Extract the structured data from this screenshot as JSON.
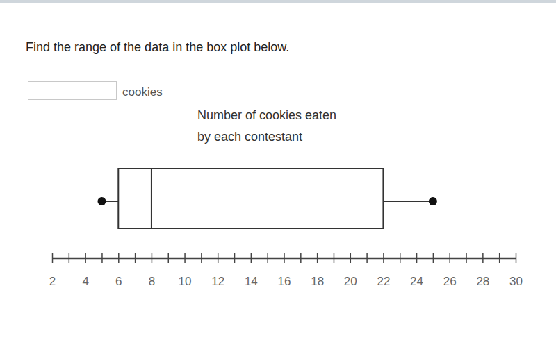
{
  "question": "Find the range of the data in the box plot below.",
  "answer_unit": "cookies",
  "chart_data": {
    "type": "box",
    "title": [
      "Number of cookies eaten",
      "by each contestant"
    ],
    "min": 5,
    "q1": 6,
    "median": 8,
    "q3": 22,
    "max": 25,
    "xlim": [
      2,
      30
    ],
    "xticks": [
      2,
      4,
      6,
      8,
      10,
      12,
      14,
      16,
      18,
      20,
      22,
      24,
      26,
      28,
      30
    ],
    "minor_xticks": [
      3,
      5,
      7,
      9,
      11,
      13,
      15,
      17,
      19,
      21,
      23,
      25,
      27,
      29
    ]
  }
}
